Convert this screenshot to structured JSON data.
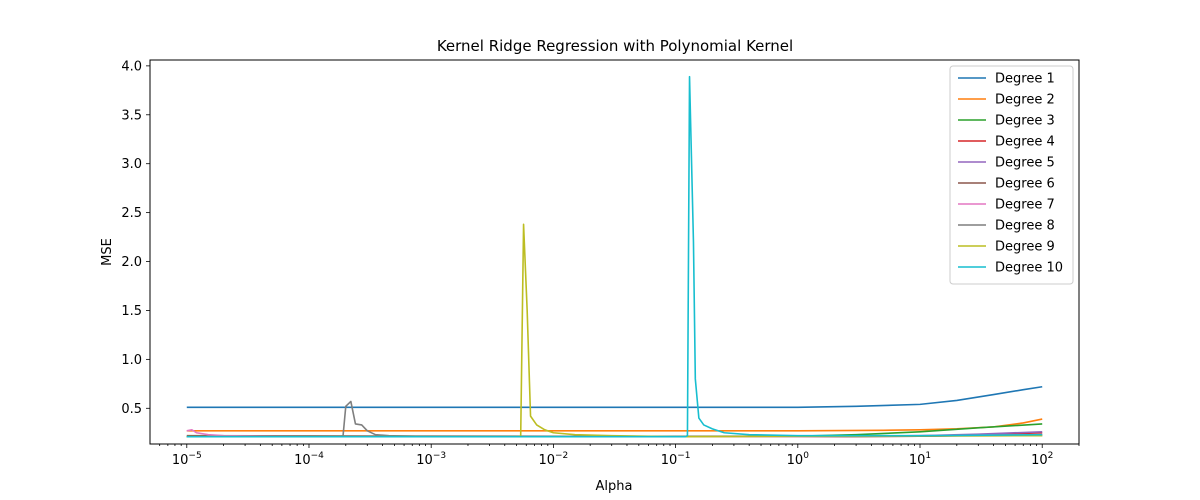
{
  "chart_data": {
    "type": "line",
    "title": "Kernel Ridge Regression with Polynomial Kernel",
    "xlabel": "Alpha",
    "ylabel": "MSE",
    "xscale": "log",
    "xlim": [
      5e-06,
      200
    ],
    "ylim": [
      0.135,
      4.06
    ],
    "x_ticks": [
      1e-05,
      0.0001,
      0.001,
      0.01,
      0.1,
      1,
      10,
      100
    ],
    "x_tick_labels": [
      {
        "base": "10",
        "exp": "−5"
      },
      {
        "base": "10",
        "exp": "−4"
      },
      {
        "base": "10",
        "exp": "−3"
      },
      {
        "base": "10",
        "exp": "−2"
      },
      {
        "base": "10",
        "exp": "−1"
      },
      {
        "base": "10",
        "exp": "0"
      },
      {
        "base": "10",
        "exp": "1"
      },
      {
        "base": "10",
        "exp": "2"
      }
    ],
    "y_ticks": [
      0.5,
      1.0,
      1.5,
      2.0,
      2.5,
      3.0,
      3.5,
      4.0
    ],
    "y_tick_labels": [
      "0.5",
      "1.0",
      "1.5",
      "2.0",
      "2.5",
      "3.0",
      "3.5",
      "4.0"
    ],
    "grid": false,
    "legend_position": "top-right",
    "series": [
      {
        "name": "Degree 1",
        "color": "#1f77b4",
        "points": [
          [
            1e-05,
            0.51
          ],
          [
            0.1,
            0.51
          ],
          [
            1,
            0.51
          ],
          [
            3,
            0.52
          ],
          [
            10,
            0.54
          ],
          [
            20,
            0.58
          ],
          [
            40,
            0.64
          ],
          [
            70,
            0.69
          ],
          [
            100,
            0.72
          ]
        ]
      },
      {
        "name": "Degree 2",
        "color": "#ff7f0e",
        "points": [
          [
            1e-05,
            0.27
          ],
          [
            1,
            0.27
          ],
          [
            5,
            0.275
          ],
          [
            10,
            0.28
          ],
          [
            20,
            0.29
          ],
          [
            40,
            0.31
          ],
          [
            70,
            0.35
          ],
          [
            100,
            0.39
          ]
        ]
      },
      {
        "name": "Degree 3",
        "color": "#2ca02c",
        "points": [
          [
            1e-05,
            0.21
          ],
          [
            0.3,
            0.21
          ],
          [
            1,
            0.215
          ],
          [
            3,
            0.23
          ],
          [
            10,
            0.26
          ],
          [
            30,
            0.3
          ],
          [
            100,
            0.34
          ]
        ]
      },
      {
        "name": "Degree 4",
        "color": "#d62728",
        "points": [
          [
            1e-05,
            0.21
          ],
          [
            1,
            0.21
          ],
          [
            10,
            0.215
          ],
          [
            30,
            0.225
          ],
          [
            100,
            0.25
          ]
        ]
      },
      {
        "name": "Degree 5",
        "color": "#9467bd",
        "points": [
          [
            1e-05,
            0.21
          ],
          [
            1,
            0.21
          ],
          [
            10,
            0.22
          ],
          [
            30,
            0.235
          ],
          [
            100,
            0.26
          ]
        ]
      },
      {
        "name": "Degree 6",
        "color": "#8c564b",
        "points": [
          [
            1e-05,
            0.22
          ],
          [
            1,
            0.21
          ],
          [
            10,
            0.215
          ],
          [
            100,
            0.23
          ]
        ]
      },
      {
        "name": "Degree 7",
        "color": "#e377c2",
        "points": [
          [
            1e-05,
            0.27
          ],
          [
            1.1e-05,
            0.28
          ],
          [
            1.2e-05,
            0.25
          ],
          [
            1.5e-05,
            0.23
          ],
          [
            2e-05,
            0.22
          ],
          [
            0.0001,
            0.21
          ],
          [
            1,
            0.21
          ],
          [
            100,
            0.23
          ]
        ]
      },
      {
        "name": "Degree 8",
        "color": "#7f7f7f",
        "points": [
          [
            1e-05,
            0.21
          ],
          [
            0.00018,
            0.21
          ],
          [
            0.00019,
            0.22
          ],
          [
            0.0002,
            0.52
          ],
          [
            0.00022,
            0.57
          ],
          [
            0.00024,
            0.34
          ],
          [
            0.00027,
            0.33
          ],
          [
            0.0003,
            0.27
          ],
          [
            0.00035,
            0.23
          ],
          [
            0.00045,
            0.22
          ],
          [
            0.001,
            0.21
          ],
          [
            100,
            0.22
          ]
        ]
      },
      {
        "name": "Degree 9",
        "color": "#bcbd22",
        "points": [
          [
            1e-05,
            0.21
          ],
          [
            0.0052,
            0.21
          ],
          [
            0.0054,
            0.22
          ],
          [
            0.0057,
            2.38
          ],
          [
            0.0061,
            1.5
          ],
          [
            0.0065,
            0.42
          ],
          [
            0.0073,
            0.33
          ],
          [
            0.0085,
            0.28
          ],
          [
            0.01,
            0.25
          ],
          [
            0.015,
            0.23
          ],
          [
            0.03,
            0.22
          ],
          [
            0.1,
            0.21
          ],
          [
            100,
            0.22
          ]
        ]
      },
      {
        "name": "Degree 10",
        "color": "#17becf",
        "points": [
          [
            1e-05,
            0.21
          ],
          [
            0.12,
            0.21
          ],
          [
            0.125,
            0.22
          ],
          [
            0.13,
            3.89
          ],
          [
            0.14,
            2.2
          ],
          [
            0.145,
            0.8
          ],
          [
            0.155,
            0.4
          ],
          [
            0.17,
            0.33
          ],
          [
            0.2,
            0.29
          ],
          [
            0.25,
            0.25
          ],
          [
            0.4,
            0.23
          ],
          [
            1,
            0.22
          ],
          [
            10,
            0.22
          ],
          [
            100,
            0.23
          ]
        ]
      }
    ]
  }
}
